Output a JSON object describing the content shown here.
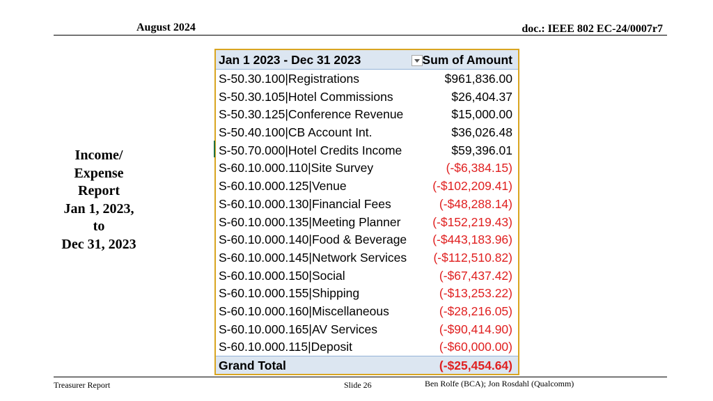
{
  "header": {
    "date": "August 2024",
    "doc_id": "doc.: IEEE 802 EC-24/0007r7"
  },
  "title_lines": [
    "Income/",
    "Expense",
    "Report",
    "Jan 1, 2023,",
    "to",
    "Dec 31, 2023"
  ],
  "pivot": {
    "col1_header": "Jan 1 2023 - Dec 31 2023",
    "col2_header": "Sum of Amount",
    "rows": [
      {
        "label": "S-50.30.100|Registrations",
        "amount": "$961,836.00",
        "negative": false
      },
      {
        "label": "S-50.30.105|Hotel Commissions",
        "amount": "$26,404.37",
        "negative": false
      },
      {
        "label": "S-50.30.125|Conference Revenue",
        "amount": "$15,000.00",
        "negative": false
      },
      {
        "label": "S-50.40.100|CB Account Int.",
        "amount": "$36,026.48",
        "negative": false
      },
      {
        "label": "S-50.70.000|Hotel Credits Income",
        "amount": "$59,396.01",
        "negative": false
      },
      {
        "label": "S-60.10.000.110|Site Survey",
        "amount": "(-$6,384.15)",
        "negative": true
      },
      {
        "label": "S-60.10.000.125|Venue",
        "amount": "(-$102,209.41)",
        "negative": true
      },
      {
        "label": "S-60.10.000.130|Financial Fees",
        "amount": "(-$48,288.14)",
        "negative": true
      },
      {
        "label": "S-60.10.000.135|Meeting Planner",
        "amount": "(-$152,219.43)",
        "negative": true
      },
      {
        "label": "S-60.10.000.140|Food & Beverage",
        "amount": "(-$443,183.96)",
        "negative": true
      },
      {
        "label": "S-60.10.000.145|Network Services",
        "amount": "(-$112,510.82)",
        "negative": true
      },
      {
        "label": "S-60.10.000.150|Social",
        "amount": "(-$67,437.42)",
        "negative": true
      },
      {
        "label": "S-60.10.000.155|Shipping",
        "amount": "(-$13,253.22)",
        "negative": true
      },
      {
        "label": "S-60.10.000.160|Miscellaneous",
        "amount": "(-$28,216.05)",
        "negative": true
      },
      {
        "label": "S-60.10.000.165|AV Services",
        "amount": "(-$90,414.90)",
        "negative": true
      },
      {
        "label": "S-60.10.000.115|Deposit",
        "amount": "(-$60,000.00)",
        "negative": true
      }
    ],
    "total_label": "Grand Total",
    "total_amount": "(-$25,454.64)"
  },
  "footer": {
    "left": "Treasurer Report",
    "center": "Slide 26",
    "right": "Ben Rolfe (BCA);   Jon Rosdahl (Qualcomm)"
  }
}
